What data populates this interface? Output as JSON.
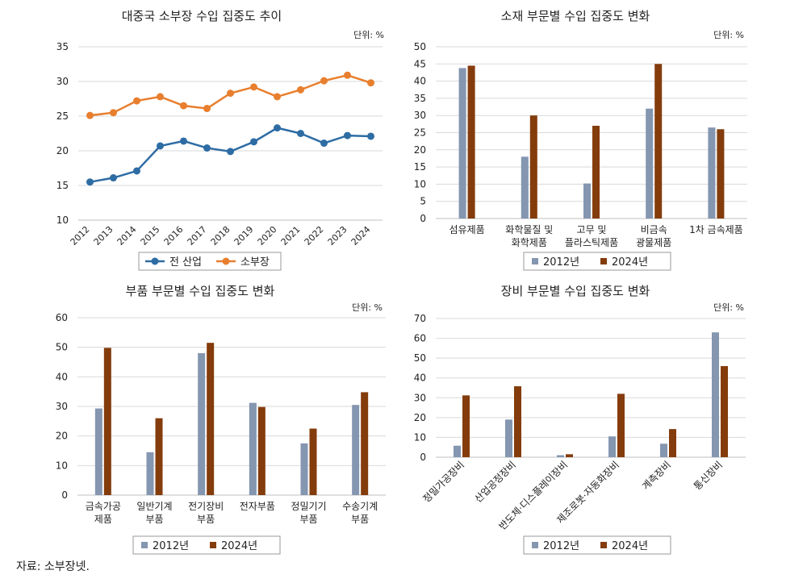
{
  "source_note": "자료: 소부장넷.",
  "unit_label": "단위: %",
  "chart_data": [
    {
      "id": "c1",
      "type": "line",
      "title": "대중국 소부장 수입 집중도 추이",
      "unit": "단위: %",
      "categories": [
        "2012",
        "2013",
        "2014",
        "2015",
        "2016",
        "2017",
        "2018",
        "2019",
        "2020",
        "2021",
        "2022",
        "2023",
        "2024"
      ],
      "ylim": [
        10,
        35
      ],
      "yticks": [
        10,
        15,
        20,
        25,
        30,
        35
      ],
      "series": [
        {
          "name": "전 산업",
          "color": "#2e6ca4",
          "values": [
            15.5,
            16.1,
            17.1,
            20.7,
            21.4,
            20.4,
            19.9,
            21.3,
            23.3,
            22.5,
            21.1,
            22.2,
            22.1
          ]
        },
        {
          "name": "소부장",
          "color": "#e87f2e",
          "values": [
            25.1,
            25.5,
            27.2,
            27.8,
            26.5,
            26.1,
            28.3,
            29.2,
            27.8,
            28.8,
            30.1,
            30.9,
            29.8
          ]
        }
      ]
    },
    {
      "id": "c2",
      "type": "bar",
      "title": "소재 부문별 수입 집중도 변화",
      "unit": "단위: %",
      "categories": [
        [
          "섬유제품"
        ],
        [
          "화학물질 및",
          "화학제품"
        ],
        [
          "고무 및",
          "플라스틱제품"
        ],
        [
          "비금속",
          "광물제품"
        ],
        [
          "1차 금속제품"
        ]
      ],
      "ylim": [
        0,
        50
      ],
      "yticks": [
        0,
        5,
        10,
        15,
        20,
        25,
        30,
        35,
        40,
        45,
        50
      ],
      "series": [
        {
          "name": "2012년",
          "color": "#8496b0",
          "values": [
            43.8,
            18.0,
            10.2,
            32.0,
            26.5
          ]
        },
        {
          "name": "2024년",
          "color": "#843c0c",
          "values": [
            44.5,
            30.0,
            27.0,
            45.0,
            26.0
          ]
        }
      ]
    },
    {
      "id": "c3",
      "type": "bar",
      "title": "부품 부문별 수입 집중도 변화",
      "unit": "단위: %",
      "categories": [
        [
          "금속가공",
          "제품"
        ],
        [
          "일반기계",
          "부품"
        ],
        [
          "전기장비",
          "부품"
        ],
        [
          "전자부품"
        ],
        [
          "정밀기기",
          "부품"
        ],
        [
          "수송기계",
          "부품"
        ]
      ],
      "ylim": [
        0,
        60
      ],
      "yticks": [
        0,
        10,
        20,
        30,
        40,
        50,
        60
      ],
      "series": [
        {
          "name": "2012년",
          "color": "#8496b0",
          "values": [
            29.3,
            14.5,
            48.0,
            31.2,
            17.5,
            30.5
          ]
        },
        {
          "name": "2024년",
          "color": "#843c0c",
          "values": [
            49.8,
            26.0,
            51.5,
            29.8,
            22.5,
            34.8
          ]
        }
      ]
    },
    {
      "id": "c4",
      "type": "bar",
      "title": "장비 부문별 수입 집중도 변화",
      "unit": "단위: %",
      "categories": [
        "정밀가공장비",
        "산업공정장비",
        "반도체·디스플레이장비",
        "제조로봇·자동화장비",
        "계측장비",
        "통신장비"
      ],
      "rotated_labels": true,
      "ylim": [
        0,
        70
      ],
      "yticks": [
        0,
        10,
        20,
        30,
        40,
        50,
        60,
        70
      ],
      "series": [
        {
          "name": "2012년",
          "color": "#8496b0",
          "values": [
            5.8,
            19.0,
            1.0,
            10.5,
            6.8,
            63.0
          ]
        },
        {
          "name": "2024년",
          "color": "#843c0c",
          "values": [
            31.2,
            35.8,
            1.5,
            32.0,
            14.2,
            46.0
          ]
        }
      ]
    }
  ]
}
